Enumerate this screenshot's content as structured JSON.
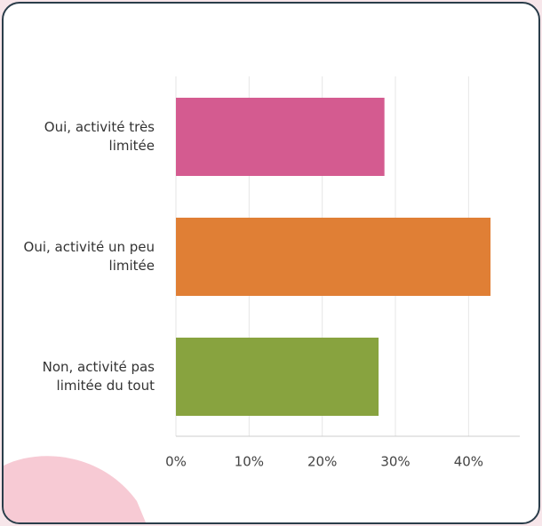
{
  "chart_data": {
    "type": "bar",
    "orientation": "horizontal",
    "categories": [
      "Oui, activité très limitée",
      "Oui, activité un peu limitée",
      "Non, activité pas limitée du tout"
    ],
    "values": [
      28.5,
      43.0,
      27.7
    ],
    "colors": [
      "#d45b90",
      "#e07f35",
      "#88a33f"
    ],
    "xlim": [
      0,
      47
    ],
    "xticks": [
      {
        "value": 0,
        "label": "0%"
      },
      {
        "value": 10,
        "label": "10%"
      },
      {
        "value": 20,
        "label": "20%"
      },
      {
        "value": 30,
        "label": "30%"
      },
      {
        "value": 40,
        "label": "40%"
      }
    ],
    "grid": true
  }
}
